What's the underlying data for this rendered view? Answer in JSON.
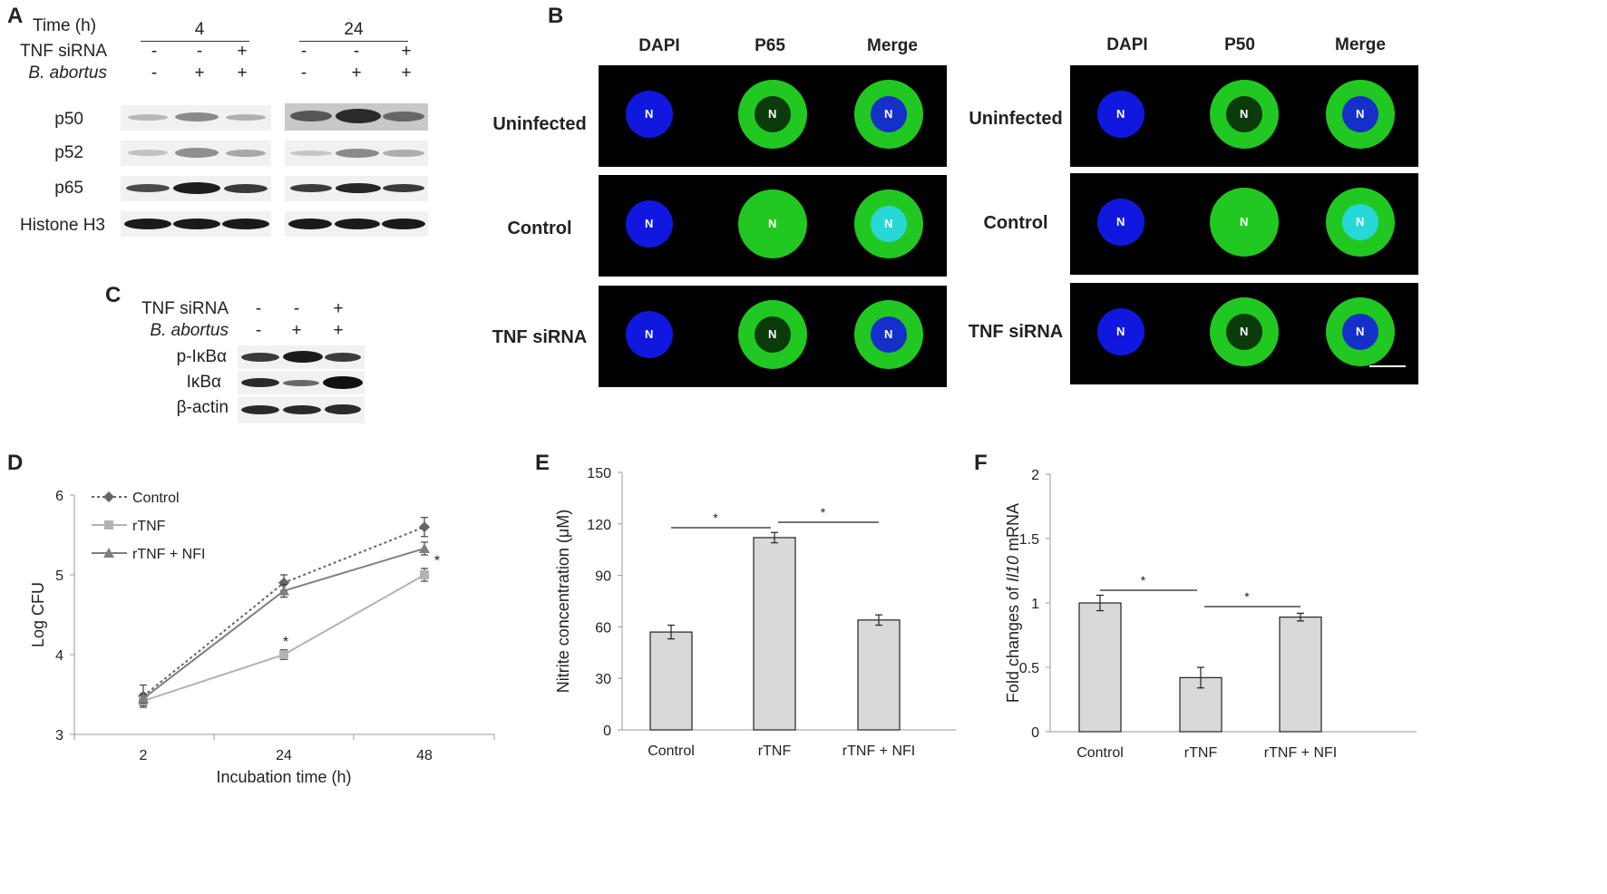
{
  "panel_labels": {
    "A": "A",
    "B": "B",
    "C": "C",
    "D": "D",
    "E": "E",
    "F": "F"
  },
  "panel_a": {
    "time_label": "Time (h)",
    "time_points": [
      "4",
      "24"
    ],
    "rows": [
      {
        "label": "TNF siRNA",
        "italic": false,
        "signs": [
          "-",
          "-",
          "+",
          "-",
          "-",
          "+"
        ]
      },
      {
        "label": "B. abortus",
        "italic": true,
        "signs": [
          "-",
          "+",
          "+",
          "-",
          "+",
          "+"
        ]
      }
    ],
    "blots": [
      "p50",
      "p52",
      "p65",
      "Histone H3"
    ]
  },
  "panel_c": {
    "rows": [
      {
        "label": "TNF siRNA",
        "italic": false,
        "signs": [
          "-",
          "-",
          "+"
        ]
      },
      {
        "label": "B. abortus",
        "italic": true,
        "signs": [
          "-",
          "+",
          "+"
        ]
      }
    ],
    "blots": [
      "p-IκBα",
      "IκBα",
      "β-actin"
    ]
  },
  "panel_b": {
    "left": {
      "columns": [
        "DAPI",
        "P65",
        "Merge"
      ],
      "rows": [
        "Uninfected",
        "Control",
        "TNF siRNA"
      ]
    },
    "right": {
      "columns": [
        "DAPI",
        "P50",
        "Merge"
      ],
      "rows": [
        "Uninfected",
        "Control",
        "TNF siRNA"
      ]
    },
    "nucleus_label": "N"
  },
  "chart_data": [
    {
      "panel": "D",
      "type": "line",
      "xlabel": "Incubation time (h)",
      "ylabel": "Log CFU",
      "categories": [
        "2",
        "24",
        "48"
      ],
      "ylim": [
        3,
        6
      ],
      "yticks": [
        3,
        4,
        5,
        6
      ],
      "series": [
        {
          "name": "Control",
          "values": [
            3.48,
            4.9,
            5.6
          ],
          "errors": [
            0.14,
            0.1,
            0.12
          ],
          "color": "#666666",
          "dash": true,
          "marker": "diamond"
        },
        {
          "name": "rTNF",
          "values": [
            3.42,
            4.0,
            5.0
          ],
          "errors": [
            0.06,
            0.06,
            0.08
          ],
          "color": "#b3b3b3",
          "dash": false,
          "marker": "square"
        },
        {
          "name": "rTNF + NFI",
          "values": [
            3.45,
            4.8,
            5.33
          ],
          "errors": [
            0.06,
            0.08,
            0.08
          ],
          "color": "#7f7f7f",
          "dash": false,
          "marker": "triangle"
        }
      ],
      "significance": [
        {
          "x": "24",
          "label": "*"
        },
        {
          "x": "48",
          "label": "*"
        }
      ]
    },
    {
      "panel": "E",
      "type": "bar",
      "xlabel": "",
      "ylabel": "Nitrite concentration (μM)",
      "categories": [
        "Control",
        "rTNF",
        "rTNF + NFI"
      ],
      "values": [
        57,
        112,
        64
      ],
      "errors": [
        4,
        3,
        3
      ],
      "ylim": [
        0,
        150
      ],
      "yticks": [
        0,
        30,
        60,
        90,
        120,
        150
      ],
      "significance": [
        {
          "from": 0,
          "to": 1,
          "label": "*"
        },
        {
          "from": 1,
          "to": 2,
          "label": "*"
        }
      ]
    },
    {
      "panel": "F",
      "type": "bar",
      "xlabel": "",
      "ylabel_parts": [
        "Fold changes of ",
        "Il10",
        " mRNA"
      ],
      "categories": [
        "Control",
        "rTNF",
        "rTNF + NFI"
      ],
      "values": [
        1.0,
        0.42,
        0.89
      ],
      "errors": [
        0.06,
        0.08,
        0.03
      ],
      "ylim": [
        0,
        2
      ],
      "yticks": [
        0,
        0.5,
        1,
        1.5,
        2
      ],
      "significance": [
        {
          "from": 0,
          "to": 1,
          "label": "*"
        },
        {
          "from": 1,
          "to": 2,
          "label": "*"
        }
      ]
    }
  ]
}
